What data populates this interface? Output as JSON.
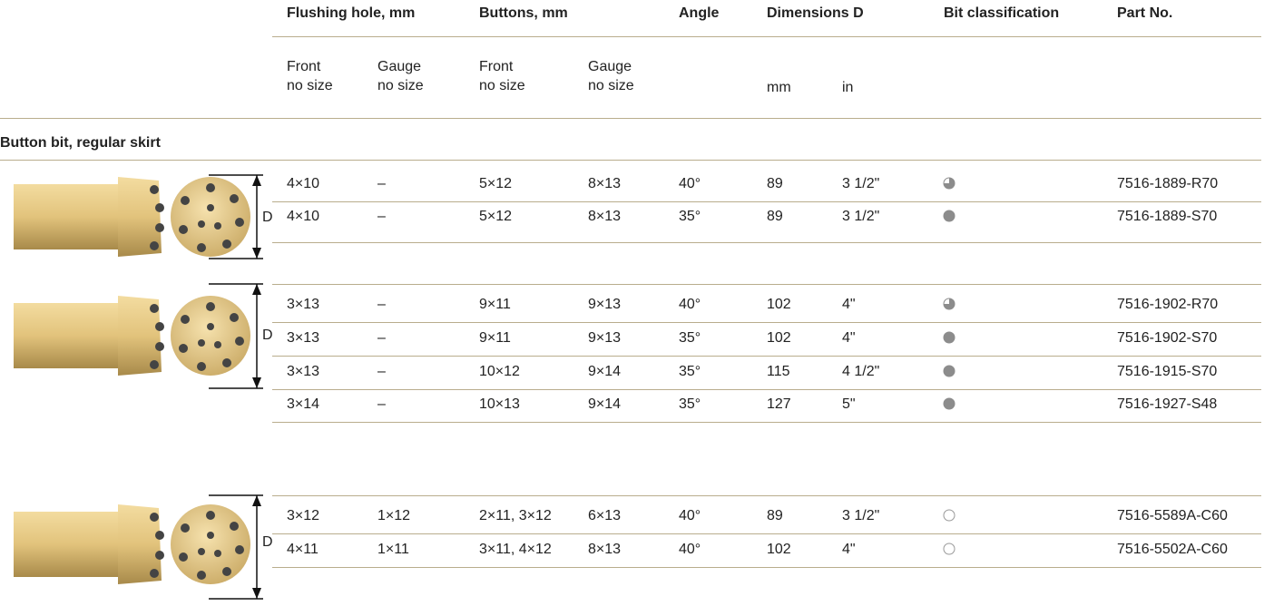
{
  "header": {
    "columns": [
      "Flushing hole, mm",
      "Buttons, mm",
      "Angle",
      "Dimensions D",
      "Bit classification",
      "Part No."
    ],
    "subcolumns": [
      [
        "Front",
        "no size"
      ],
      [
        "Gauge",
        "no size"
      ],
      [
        "Front",
        "no size"
      ],
      [
        "Gauge",
        "no size"
      ]
    ],
    "units": [
      "mm",
      "in"
    ]
  },
  "section": "Button bit, regular skirt",
  "groups": [
    {
      "figure_label": "D",
      "rows": [
        [
          "4×10",
          "–",
          "5×12",
          "8×13",
          "40°",
          "89",
          "3 1/2\"",
          "7516-1889-R70"
        ],
        [
          "4×10",
          "–",
          "5×12",
          "8×13",
          "35°",
          "89",
          "3 1/2\"",
          "7516-1889-S70"
        ]
      ]
    },
    {
      "figure_label": "D",
      "rows": [
        [
          "3×13",
          "–",
          "9×11",
          "9×13",
          "40°",
          "102",
          "4\"",
          "7516-1902-R70"
        ],
        [
          "3×13",
          "–",
          "9×11",
          "9×13",
          "35°",
          "102",
          "4\"",
          "7516-1902-S70"
        ],
        [
          "3×13",
          "–",
          "10×12",
          "9×14",
          "35°",
          "115",
          "4 1/2\"",
          "7516-1915-S70"
        ],
        [
          "3×14",
          "–",
          "10×13",
          "9×14",
          "35°",
          "127",
          "5\"",
          "7516-1927-S48"
        ]
      ]
    },
    {
      "figure_label": "D",
      "rows": [
        [
          "3×12",
          "1×12",
          "2×11, 3×12",
          "6×13",
          "40°",
          "89",
          "3 1/2\"",
          "7516-5589A-C60"
        ],
        [
          "4×11",
          "1×11",
          "3×11, 4×12",
          "8×13",
          "40°",
          "102",
          "4\"",
          "7516-5502A-C60"
        ]
      ]
    }
  ]
}
